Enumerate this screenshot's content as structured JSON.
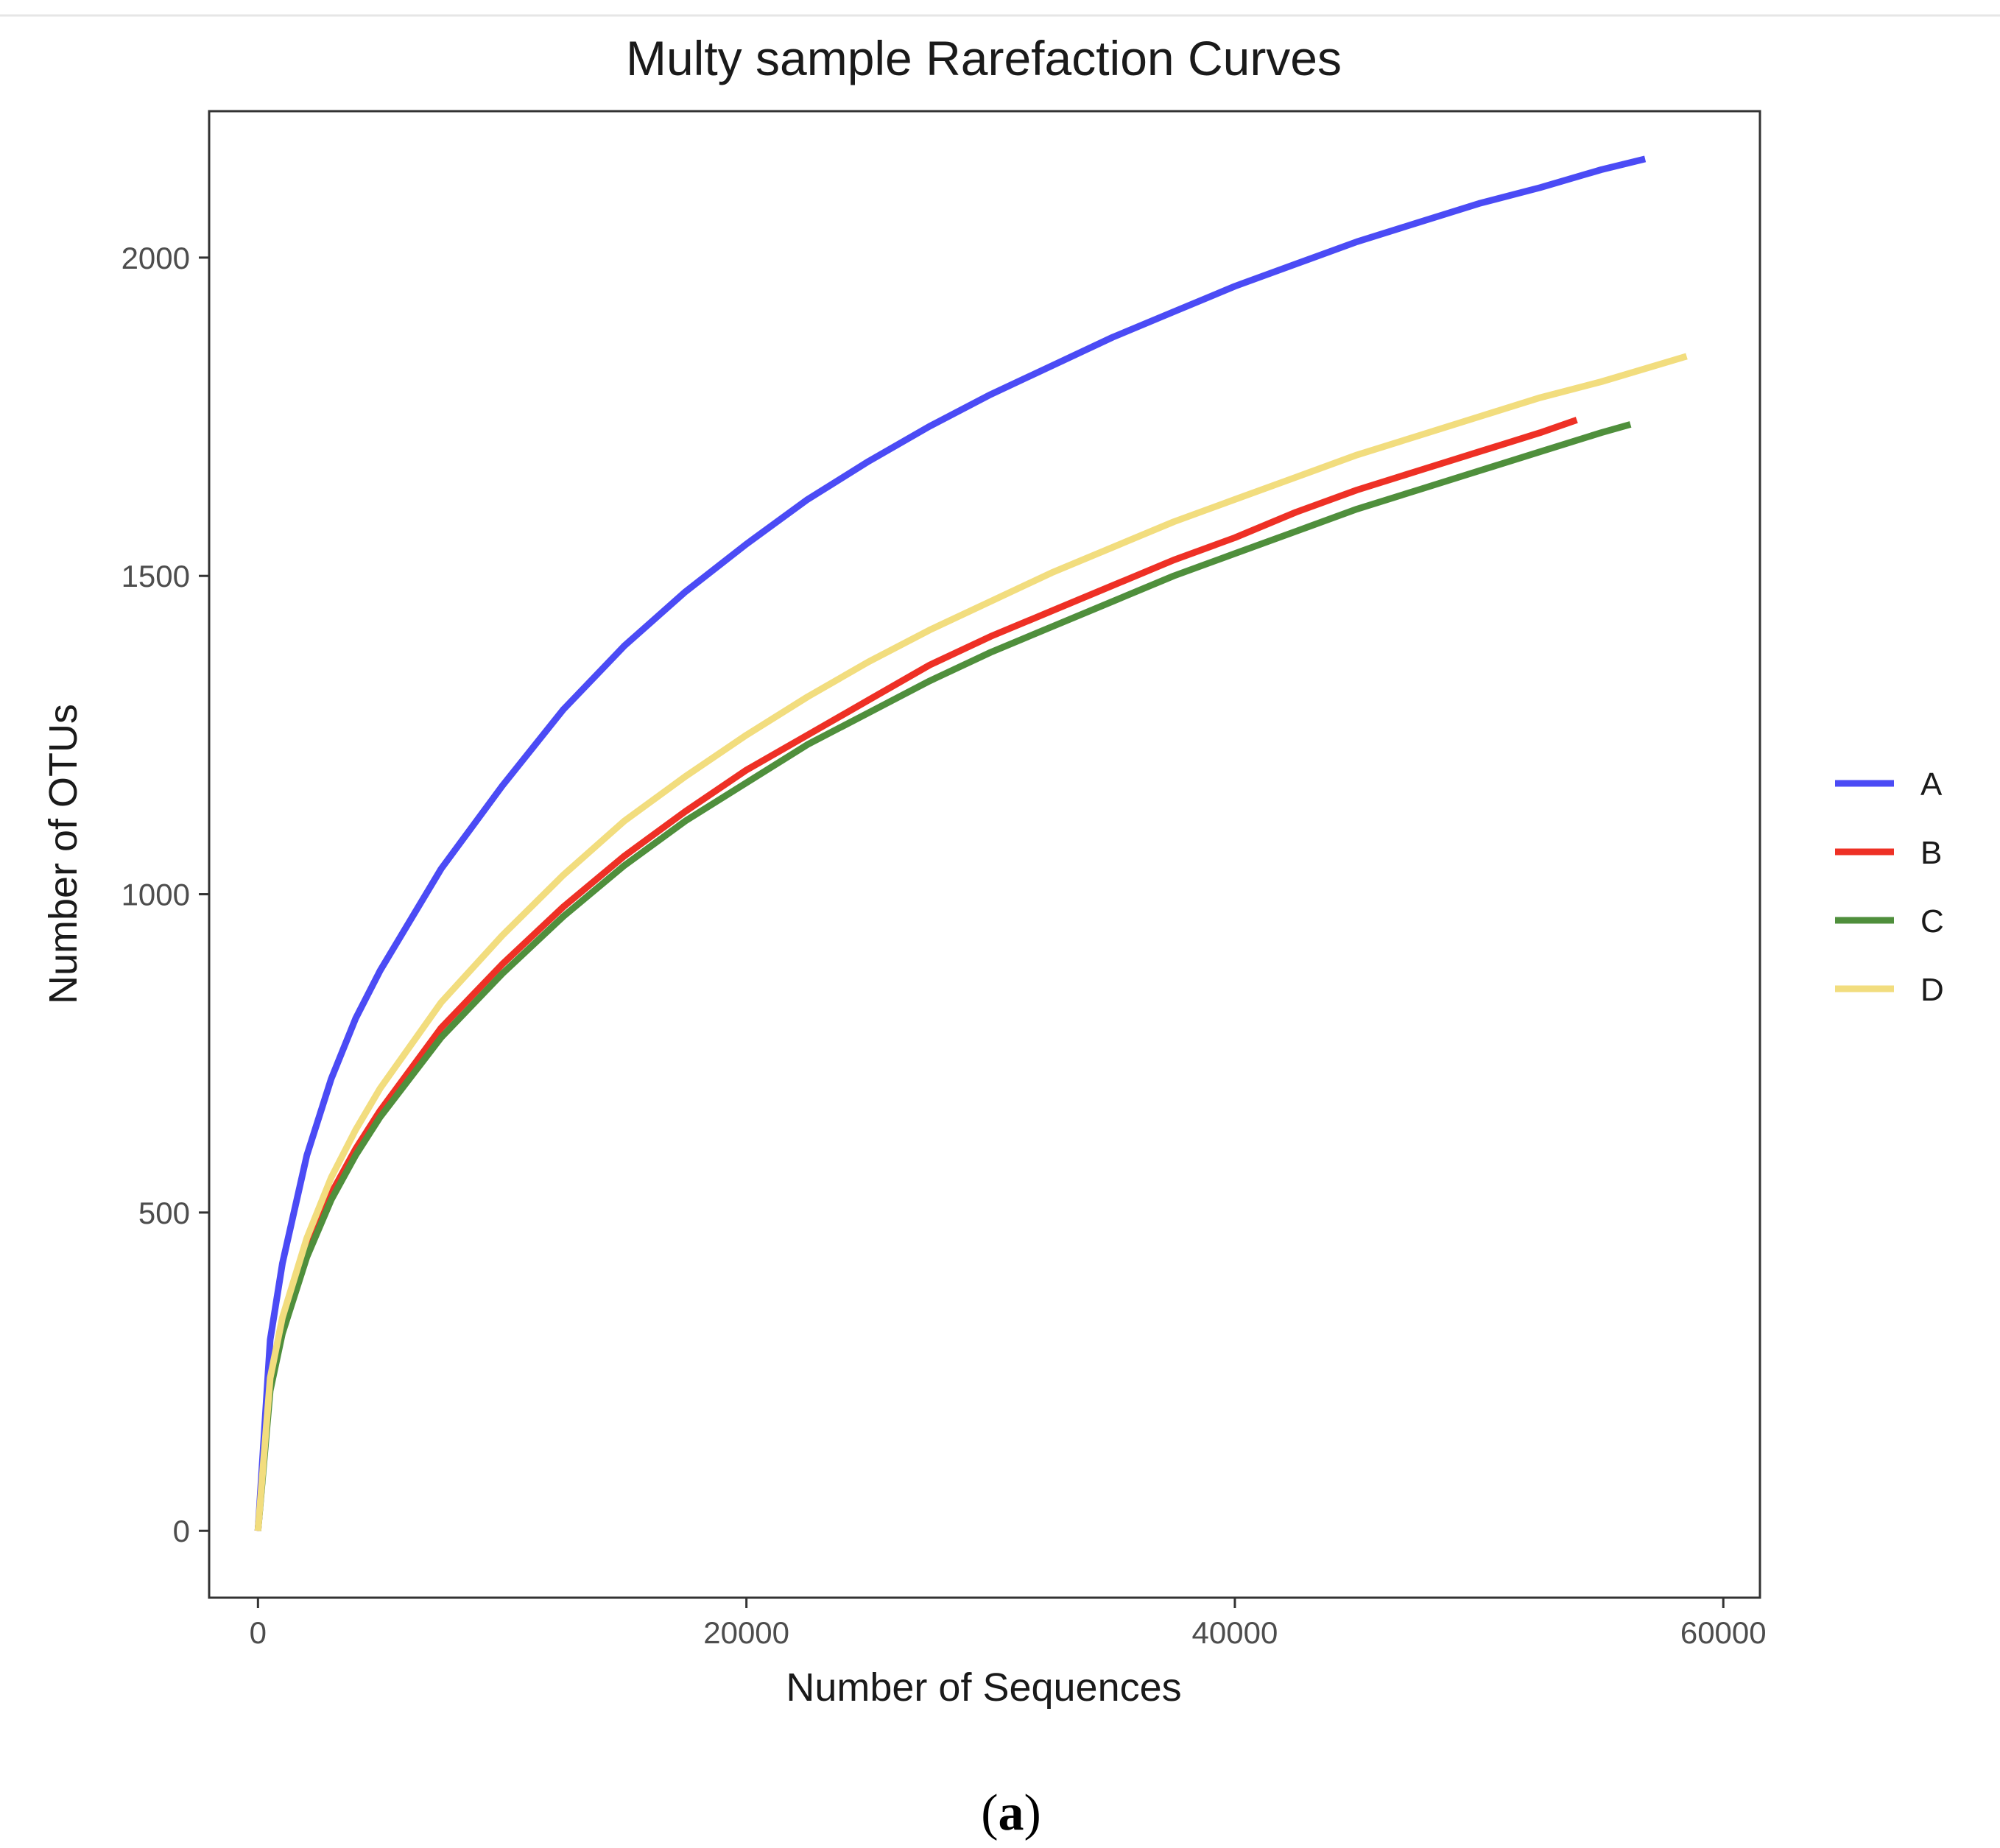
{
  "chart_data": {
    "type": "line",
    "title": "Multy sample Rarefaction Curves",
    "xlabel": "Number of Sequences",
    "ylabel": "Number of OTUs",
    "xlim": [
      -2000,
      61500
    ],
    "ylim": [
      -105,
      2230
    ],
    "xticks": [
      0,
      20000,
      40000,
      60000
    ],
    "yticks": [
      0,
      500,
      1000,
      1500,
      2000
    ],
    "legend_position": "right",
    "grid": false,
    "series": [
      {
        "name": "A",
        "color": "#4b4bf5",
        "x": [
          0,
          500,
          1000,
          2000,
          3000,
          4000,
          5000,
          7500,
          10000,
          12500,
          15000,
          17500,
          20000,
          22500,
          25000,
          27500,
          30000,
          32500,
          35000,
          37500,
          40000,
          42500,
          45000,
          47500,
          50000,
          52500,
          55000,
          56800
        ],
        "y": [
          0,
          300,
          420,
          590,
          710,
          805,
          880,
          1040,
          1170,
          1290,
          1390,
          1475,
          1550,
          1620,
          1680,
          1735,
          1785,
          1830,
          1875,
          1915,
          1955,
          1990,
          2025,
          2055,
          2085,
          2110,
          2138,
          2155
        ]
      },
      {
        "name": "B",
        "color": "#ee3025",
        "x": [
          0,
          500,
          1000,
          2000,
          3000,
          4000,
          5000,
          7500,
          10000,
          12500,
          15000,
          17500,
          20000,
          22500,
          25000,
          27500,
          30000,
          32500,
          35000,
          37500,
          40000,
          42500,
          45000,
          47500,
          50000,
          52500,
          54000
        ],
        "y": [
          0,
          230,
          320,
          440,
          530,
          600,
          660,
          790,
          890,
          980,
          1060,
          1130,
          1195,
          1250,
          1305,
          1360,
          1405,
          1445,
          1485,
          1525,
          1560,
          1600,
          1635,
          1665,
          1695,
          1725,
          1745
        ]
      },
      {
        "name": "C",
        "color": "#4f8f3c",
        "x": [
          0,
          500,
          1000,
          2000,
          3000,
          4000,
          5000,
          7500,
          10000,
          12500,
          15000,
          17500,
          20000,
          22500,
          25000,
          27500,
          30000,
          32500,
          35000,
          37500,
          40000,
          42500,
          45000,
          47500,
          50000,
          52500,
          55000,
          56200
        ],
        "y": [
          0,
          220,
          310,
          430,
          520,
          590,
          650,
          775,
          875,
          965,
          1045,
          1115,
          1175,
          1235,
          1285,
          1335,
          1380,
          1420,
          1460,
          1500,
          1535,
          1570,
          1605,
          1635,
          1665,
          1695,
          1725,
          1738
        ]
      },
      {
        "name": "D",
        "color": "#f2dd7e",
        "x": [
          0,
          500,
          1000,
          2000,
          3000,
          4000,
          5000,
          7500,
          10000,
          12500,
          15000,
          17500,
          20000,
          22500,
          25000,
          27500,
          30000,
          32500,
          35000,
          37500,
          40000,
          42500,
          45000,
          47500,
          50000,
          52500,
          55000,
          58500
        ],
        "y": [
          0,
          240,
          335,
          460,
          555,
          630,
          695,
          830,
          935,
          1030,
          1115,
          1185,
          1250,
          1310,
          1365,
          1415,
          1460,
          1505,
          1545,
          1585,
          1620,
          1655,
          1690,
          1720,
          1750,
          1780,
          1805,
          1845
        ]
      }
    ]
  },
  "caption": {
    "open": "(",
    "label": "a",
    "close": ")"
  }
}
